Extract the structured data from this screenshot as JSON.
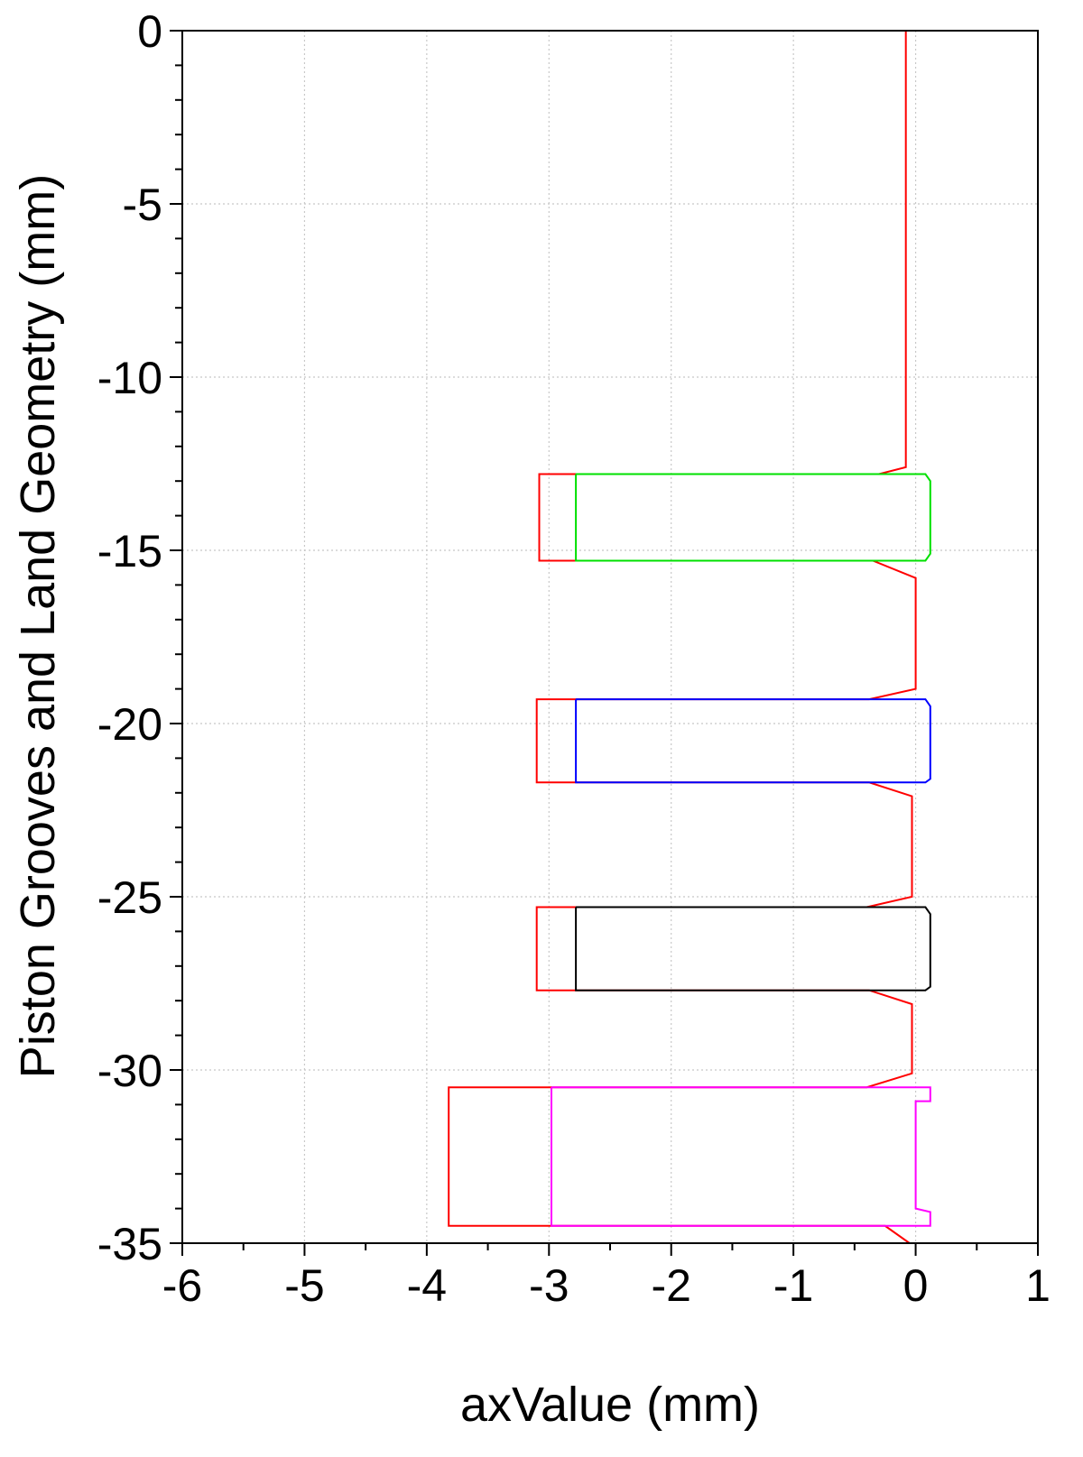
{
  "chart_data": {
    "type": "line",
    "xlabel": "axValue (mm)",
    "ylabel": "Piston Grooves and Land Geometry (mm)",
    "xlim": [
      -6,
      1
    ],
    "ylim": [
      -35,
      0
    ],
    "xticks": [
      -6,
      -5,
      -4,
      -3,
      -2,
      -1,
      0,
      1
    ],
    "yticks": [
      0,
      -5,
      -10,
      -15,
      -20,
      -25,
      -30,
      -35
    ],
    "xtick_labels": [
      "-6",
      "-5",
      "-4",
      "-3",
      "-2",
      "-1",
      "0",
      "1"
    ],
    "ytick_labels": [
      "0",
      "-5",
      "-10",
      "-15",
      "-20",
      "-25",
      "-30",
      "-35"
    ],
    "grid": true,
    "series": [
      {
        "color": "#ff0000",
        "x": [
          -5.85,
          -0.08,
          -0.08,
          -0.3,
          -3.08,
          -3.08,
          -0.35,
          0.0,
          0.0,
          -0.38,
          -3.1,
          -3.1,
          -0.38,
          -0.03,
          -0.03,
          -0.4,
          -3.1,
          -3.1,
          -0.38,
          -0.03,
          -0.03,
          -0.4,
          -3.82,
          -3.82,
          -0.25,
          -0.05
        ],
        "y": [
          0,
          0,
          -12.6,
          -12.8,
          -12.8,
          -15.3,
          -15.3,
          -15.8,
          -19.0,
          -19.3,
          -19.3,
          -21.7,
          -21.7,
          -22.1,
          -25.0,
          -25.3,
          -25.3,
          -27.7,
          -27.7,
          -28.1,
          -30.1,
          -30.5,
          -30.5,
          -34.5,
          -34.5,
          -35.0
        ]
      },
      {
        "color": "#00e000",
        "x": [
          -2.78,
          0.08,
          0.12,
          0.12,
          0.08,
          -2.78,
          -2.78
        ],
        "y": [
          -12.8,
          -12.8,
          -13.0,
          -15.1,
          -15.3,
          -15.3,
          -12.8
        ]
      },
      {
        "color": "#0000ff",
        "x": [
          -2.78,
          0.08,
          0.12,
          0.12,
          0.08,
          -2.78,
          -2.78
        ],
        "y": [
          -19.3,
          -19.3,
          -19.5,
          -21.6,
          -21.7,
          -21.7,
          -19.3
        ]
      },
      {
        "color": "#000000",
        "x": [
          -2.78,
          0.08,
          0.12,
          0.12,
          0.08,
          -2.78,
          -2.78
        ],
        "y": [
          -25.3,
          -25.3,
          -25.5,
          -27.6,
          -27.7,
          -27.7,
          -25.3
        ]
      },
      {
        "color": "#ff00ff",
        "x": [
          -2.98,
          0.12,
          0.12,
          0.0,
          0.0,
          0.12,
          0.12,
          -2.98,
          -2.98
        ],
        "y": [
          -30.5,
          -30.5,
          -30.9,
          -30.9,
          -34.0,
          -34.1,
          -34.5,
          -34.5,
          -30.5
        ]
      }
    ]
  }
}
